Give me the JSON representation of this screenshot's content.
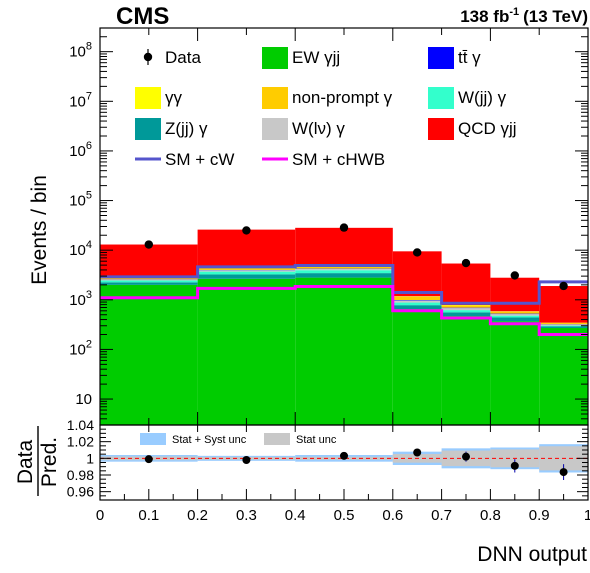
{
  "header": {
    "experiment": "CMS",
    "lumi": "138 fb",
    "lumi_exp": "-1",
    "energy": "(13 TeV)"
  },
  "chart_data": [
    {
      "type": "stacked-histogram",
      "ylabel": "Events / bin",
      "yscale": "log",
      "ylim": [
        3,
        300000000
      ],
      "xlim": [
        0,
        1
      ],
      "bin_edges": [
        0,
        0.2,
        0.4,
        0.6,
        0.7,
        0.8,
        0.9,
        1.0
      ],
      "ytick_labels": [
        {
          "v": 10,
          "label": "10"
        },
        {
          "v": 100,
          "b": "10",
          "e": "2"
        },
        {
          "v": 1000,
          "b": "10",
          "e": "3"
        },
        {
          "v": 10000,
          "b": "10",
          "e": "4"
        },
        {
          "v": 100000,
          "b": "10",
          "e": "5"
        },
        {
          "v": 1000000,
          "b": "10",
          "e": "6"
        },
        {
          "v": 10000000,
          "b": "10",
          "e": "7"
        },
        {
          "v": 100000000,
          "b": "10",
          "e": "8"
        }
      ],
      "stack": [
        {
          "name": "EW γjj",
          "color": "#00cc00",
          "values": [
            2000,
            2650,
            2800,
            650,
            470,
            370,
            270
          ]
        },
        {
          "name": "Z(jj) γ",
          "color": "#009999",
          "values": [
            250,
            600,
            650,
            130,
            90,
            70,
            20
          ]
        },
        {
          "name": "W(jj) γ",
          "color": "#33ffcc",
          "values": [
            200,
            450,
            500,
            100,
            60,
            40,
            12
          ]
        },
        {
          "name": "W(lν) γ",
          "color": "#c8c8c8",
          "values": [
            100,
            250,
            250,
            90,
            60,
            35,
            15
          ]
        },
        {
          "name": "tt̄ γ",
          "color": "#0000ff",
          "values": [
            40,
            60,
            60,
            20,
            15,
            12,
            5
          ]
        },
        {
          "name": "non-prompt γ",
          "color": "#ffcc00",
          "values": [
            250,
            350,
            350,
            160,
            70,
            45,
            18
          ]
        },
        {
          "name": "γγ",
          "color": "#ffff00",
          "values": [
            60,
            100,
            100,
            30,
            20,
            15,
            6
          ]
        },
        {
          "name": "QCD γjj",
          "color": "#ff0000",
          "values": [
            10100,
            21500,
            23500,
            8300,
            4600,
            2200,
            1550
          ]
        }
      ],
      "data": {
        "name": "Data",
        "x": [
          0.1,
          0.3,
          0.5,
          0.65,
          0.75,
          0.85,
          0.95
        ],
        "y": [
          13000,
          25000,
          28500,
          9000,
          5500,
          3100,
          1900
        ]
      },
      "sm_lines": [
        {
          "name": "SM + cW",
          "color": "#5555cc",
          "values": [
            2900,
            4600,
            4900,
            1400,
            850,
            850,
            2300
          ]
        },
        {
          "name": "SM + cHWB",
          "color": "#ff00ff",
          "values": [
            1100,
            1700,
            1850,
            600,
            430,
            330,
            200
          ]
        }
      ],
      "legend_order": [
        "Data",
        "EW γjj",
        "tt̄ γ",
        "γγ",
        "non-prompt γ",
        "W(jj) γ",
        "Z(jj) γ",
        "W(lν) γ",
        "QCD γjj",
        "SM + cW",
        "SM + cHWB"
      ],
      "legend_placement": "top"
    },
    {
      "type": "ratio",
      "ylabel_num": "Data",
      "ylabel_den": "Pred.",
      "xlabel": "DNN output",
      "ylim": [
        0.95,
        1.04
      ],
      "yticks": [
        0.96,
        0.98,
        1,
        1.02,
        1.04
      ],
      "ytick_labels": [
        "0.96",
        "0.98",
        "1",
        "1.02",
        "1.04"
      ],
      "xticks": [
        0,
        0.1,
        0.2,
        0.3,
        0.4,
        0.5,
        0.6,
        0.7,
        0.8,
        0.9,
        1
      ],
      "xtick_labels": [
        "0",
        "0.1",
        "0.2",
        "0.3",
        "0.4",
        "0.5",
        "0.6",
        "0.7",
        "0.8",
        "0.9",
        "1"
      ],
      "bin_edges": [
        0,
        0.2,
        0.4,
        0.6,
        0.7,
        0.8,
        0.9,
        1.0
      ],
      "syst_band": {
        "name": "Stat + Syst unc",
        "color": "#99ccff",
        "half_width": [
          0.004,
          0.003,
          0.004,
          0.008,
          0.012,
          0.013,
          0.017
        ]
      },
      "stat_band": {
        "name": "Stat unc",
        "color": "#c8c8c8",
        "half_width": [
          0.0022,
          0.0016,
          0.0018,
          0.0052,
          0.0093,
          0.0107,
          0.0145
        ]
      },
      "points": {
        "x": [
          0.1,
          0.3,
          0.5,
          0.65,
          0.75,
          0.85,
          0.95
        ],
        "y": [
          0.999,
          0.998,
          1.003,
          1.007,
          1.002,
          0.991,
          0.9835
        ],
        "err": [
          0.002,
          0.0015,
          0.0017,
          0.0045,
          0.006,
          0.008,
          0.0095
        ]
      },
      "reference_line": {
        "y": 1,
        "color": "#ff0000"
      }
    }
  ]
}
